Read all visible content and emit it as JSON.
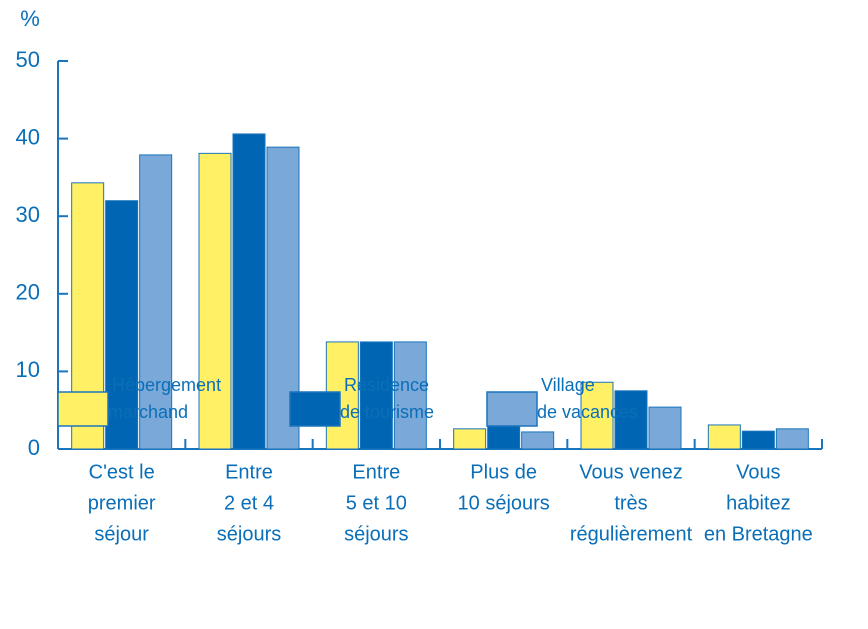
{
  "chart_data": {
    "type": "bar",
    "y_unit": "%",
    "categories": [
      [
        "C'est le",
        "premier",
        "séjour"
      ],
      [
        "Entre",
        "2 et 4",
        "séjours"
      ],
      [
        "Entre",
        "5 et 10",
        "séjours"
      ],
      [
        "Plus de",
        "10 séjours"
      ],
      [
        "Vous venez",
        "très",
        "régulièrement"
      ],
      [
        "Vous",
        "habitez",
        "en Bretagne"
      ]
    ],
    "series": [
      {
        "name": [
          "Hébergement",
          "marchand"
        ],
        "color": "#fff066",
        "values": [
          34.3,
          38.1,
          13.8,
          2.6,
          8.6,
          3.1
        ]
      },
      {
        "name": [
          "Résidence",
          "de tourisme"
        ],
        "color": "#0066b3",
        "values": [
          32.0,
          40.6,
          13.8,
          4.1,
          7.5,
          2.3
        ]
      },
      {
        "name": [
          "Village",
          "de vacances"
        ],
        "color": "#7aa8d8",
        "values": [
          37.9,
          38.9,
          13.8,
          2.2,
          5.4,
          2.6
        ]
      }
    ],
    "ylim": [
      0,
      50
    ],
    "yticks": [
      0,
      10,
      20,
      30,
      40,
      50
    ],
    "grid": false
  }
}
